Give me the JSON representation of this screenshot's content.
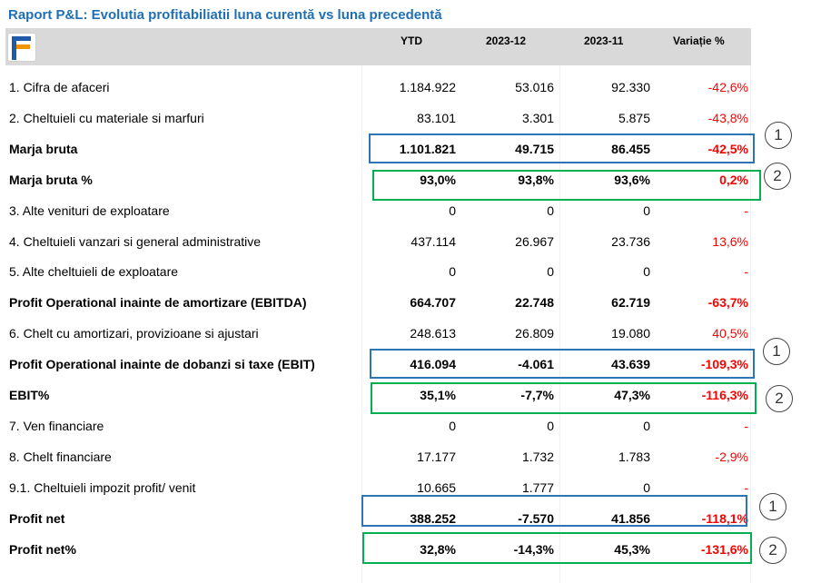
{
  "title": "Raport P&L:  Evolutia profitabiliatii luna curentă vs luna precedentă",
  "headers": {
    "ytd": "YTD",
    "m1": "2023-12",
    "m2": "2023-11",
    "var": "Variație %"
  },
  "rows": [
    {
      "label": "1. Cifra de afaceri",
      "ytd": "1.184.922",
      "m1": "53.016",
      "m2": "92.330",
      "var": "-42,6%",
      "bold": false
    },
    {
      "label": "2. Cheltuieli cu materiale si marfuri",
      "ytd": "83.101",
      "m1": "3.301",
      "m2": "5.875",
      "var": "-43,8%",
      "bold": false
    },
    {
      "label": "Marja bruta",
      "ytd": "1.101.821",
      "m1": "49.715",
      "m2": "86.455",
      "var": "-42,5%",
      "bold": true
    },
    {
      "label": "Marja bruta %",
      "ytd": "93,0%",
      "m1": "93,8%",
      "m2": "93,6%",
      "var": "0,2%",
      "bold": true
    },
    {
      "label": "3. Alte venituri de exploatare",
      "ytd": "0",
      "m1": "0",
      "m2": "0",
      "var": "-",
      "bold": false
    },
    {
      "label": "4. Cheltuieli vanzari si general administrative",
      "ytd": "437.114",
      "m1": "26.967",
      "m2": "23.736",
      "var": "13,6%",
      "bold": false
    },
    {
      "label": "5. Alte cheltuieli de exploatare",
      "ytd": "0",
      "m1": "0",
      "m2": "0",
      "var": "-",
      "bold": false
    },
    {
      "label": "Profit Operational inainte de amortizare (EBITDA)",
      "ytd": "664.707",
      "m1": "22.748",
      "m2": "62.719",
      "var": "-63,7%",
      "bold": true
    },
    {
      "label": "6. Chelt cu amortizari, provizioane si ajustari",
      "ytd": "248.613",
      "m1": "26.809",
      "m2": "19.080",
      "var": "40,5%",
      "bold": false
    },
    {
      "label": "Profit Operational inainte de dobanzi si taxe (EBIT)",
      "ytd": "416.094",
      "m1": "-4.061",
      "m2": "43.639",
      "var": "-109,3%",
      "bold": true
    },
    {
      "label": "EBIT%",
      "ytd": "35,1%",
      "m1": "-7,7%",
      "m2": "47,3%",
      "var": "-116,3%",
      "bold": true
    },
    {
      "label": "7. Ven financiare",
      "ytd": "0",
      "m1": "0",
      "m2": "0",
      "var": "-",
      "bold": false
    },
    {
      "label": "8. Chelt financiare",
      "ytd": "17.177",
      "m1": "1.732",
      "m2": "1.783",
      "var": "-2,9%",
      "bold": false
    },
    {
      "label": "9.1. Cheltuieli impozit profit/ venit",
      "ytd": "10.665",
      "m1": "1.777",
      "m2": "0",
      "var": "-",
      "bold": false
    },
    {
      "label": "Profit net",
      "ytd": "388.252",
      "m1": "-7.570",
      "m2": "41.856",
      "var": "-118,1%",
      "bold": true
    },
    {
      "label": "Profit net%",
      "ytd": "32,8%",
      "m1": "-14,3%",
      "m2": "45,3%",
      "var": "-131,6%",
      "bold": true
    }
  ],
  "annotations": {
    "marker_1": "1",
    "marker_2": "2"
  },
  "colors": {
    "title": "#1f6fb5",
    "negative": "#ff0000",
    "box_blue": "#2e75b6",
    "box_green": "#00b050",
    "header_band": "#d9d9d9"
  },
  "logo": "brand-logo-f-icon"
}
